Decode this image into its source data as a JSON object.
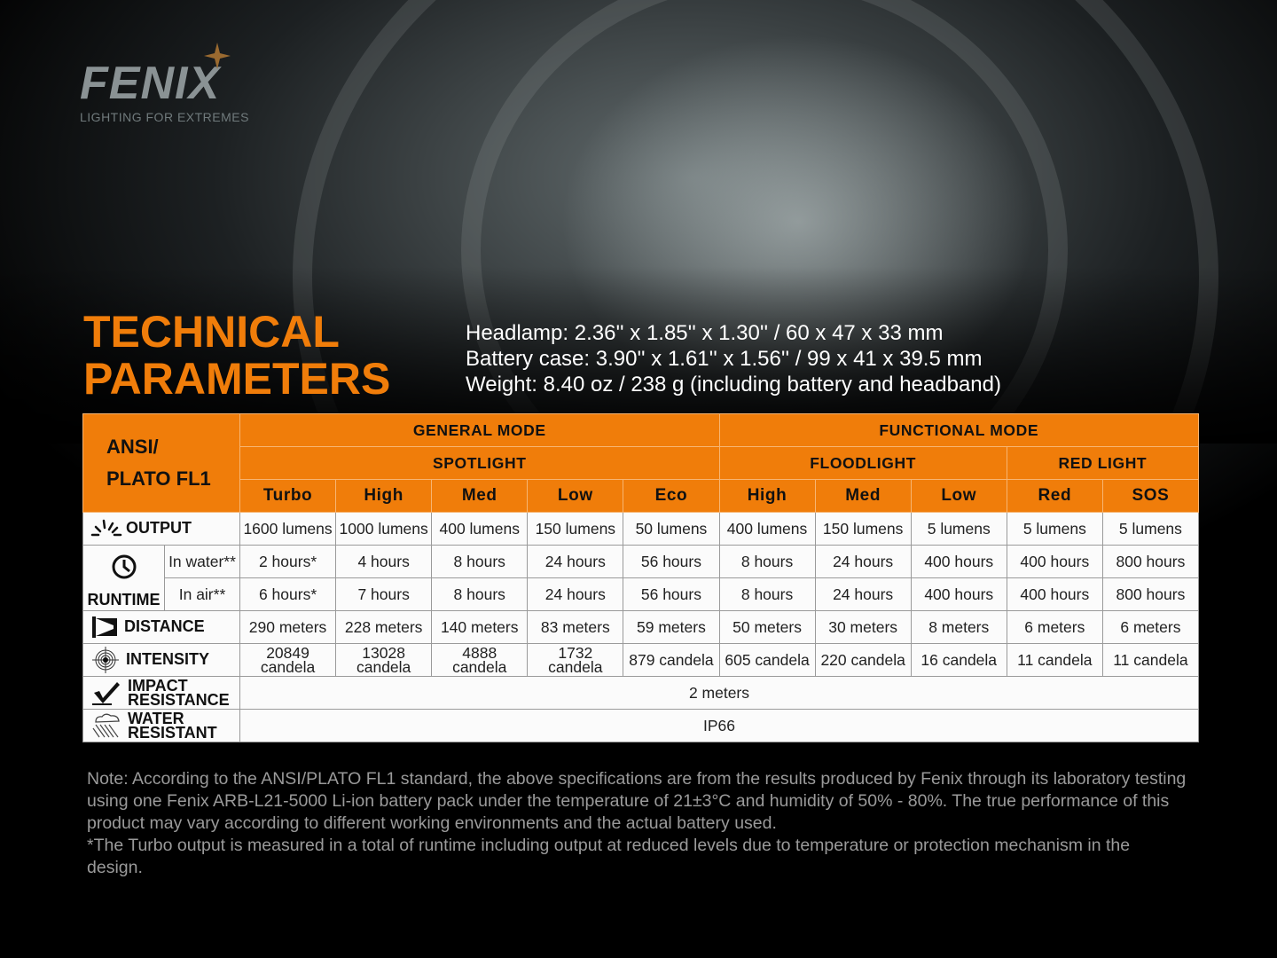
{
  "brand": {
    "logo": "FENIX",
    "tagline": "LIGHTING FOR EXTREMES"
  },
  "title": [
    "TECHNICAL",
    "PARAMETERS"
  ],
  "dimensions": [
    "Headlamp: 2.36'' x 1.85'' x 1.30'' / 60 x 47 x 33 mm",
    "Battery case: 3.90'' x 1.61'' x 1.56'' / 99 x 41 x 39.5 mm",
    "Weight: 8.40 oz / 238 g (including battery and headband)"
  ],
  "table": {
    "corner": [
      "ANSI/",
      "PLATO FL1"
    ],
    "groups": {
      "general": "GENERAL MODE",
      "functional": "FUNCTIONAL MODE"
    },
    "subgroups": {
      "spotlight": "SPOTLIGHT",
      "floodlight": "FLOODLIGHT",
      "red": "RED LIGHT"
    },
    "modes": [
      "Turbo",
      "High",
      "Med",
      "Low",
      "Eco",
      "High",
      "Med",
      "Low",
      "Red",
      "SOS"
    ],
    "rows": {
      "output": {
        "label": "OUTPUT",
        "icon": "burst-icon",
        "values": [
          "1600 lumens",
          "1000 lumens",
          "400 lumens",
          "150 lumens",
          "50 lumens",
          "400 lumens",
          "150 lumens",
          "5 lumens",
          "5 lumens",
          "5 lumens"
        ]
      },
      "runtime": {
        "label": "RUNTIME",
        "icon": "clock-icon",
        "water_label": "In water**",
        "air_label": "In air**",
        "water": [
          "2 hours*",
          "4 hours",
          "8 hours",
          "24 hours",
          "56 hours",
          "8 hours",
          "24 hours",
          "400 hours",
          "400 hours",
          "800 hours"
        ],
        "air": [
          "6 hours*",
          "7 hours",
          "8 hours",
          "24 hours",
          "56 hours",
          "8 hours",
          "24 hours",
          "400 hours",
          "400 hours",
          "800 hours"
        ]
      },
      "distance": {
        "label": "DISTANCE",
        "icon": "beam-icon",
        "values": [
          "290 meters",
          "228 meters",
          "140 meters",
          "83 meters",
          "59 meters",
          "50 meters",
          "30 meters",
          "8 meters",
          "6 meters",
          "6 meters"
        ]
      },
      "intensity": {
        "label": "INTENSITY",
        "icon": "target-icon",
        "values": [
          [
            "20849",
            "candela"
          ],
          [
            "13028",
            "candela"
          ],
          [
            "4888",
            "candela"
          ],
          [
            "1732",
            "candela"
          ],
          [
            "879 candela"
          ],
          [
            "605 candela"
          ],
          [
            "220 candela"
          ],
          [
            "16 candela"
          ],
          [
            "11 candela"
          ],
          [
            "11 candela"
          ]
        ]
      },
      "impact": {
        "label": [
          "IMPACT",
          "RESISTANCE"
        ],
        "icon": "impact-icon",
        "value": "2 meters"
      },
      "water": {
        "label": [
          "WATER",
          "RESISTANT"
        ],
        "icon": "rain-icon",
        "value": "IP66"
      }
    }
  },
  "note": [
    "Note: According to the ANSI/PLATO FL1 standard, the above specifications are from the results produced by Fenix through its laboratory testing using one Fenix ARB-L21-5000 Li-ion battery pack under the temperature of 21±3°C and humidity of 50% - 80%. The true performance of this product may vary according to different working environments and the actual battery used.",
    "*The Turbo output is measured in a total of runtime including output at reduced levels due to temperature or protection mechanism in the design."
  ],
  "colors": {
    "accent": "#f07d0a"
  }
}
